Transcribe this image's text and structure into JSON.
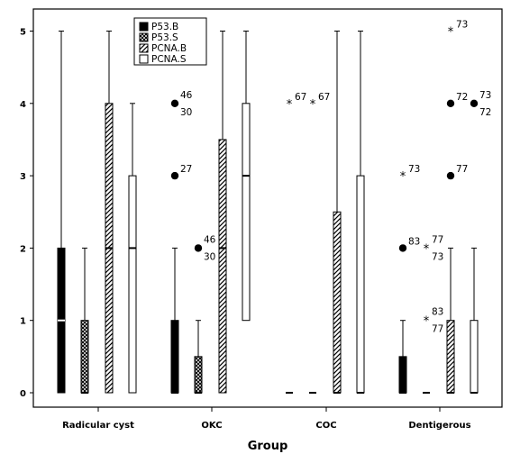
{
  "chart_data": {
    "type": "boxplot",
    "title": "",
    "xlabel": "Group",
    "ylabel": "",
    "ylim": [
      0,
      5
    ],
    "yticks": [
      "0",
      "1",
      "2",
      "3",
      "4",
      "5"
    ],
    "categories": [
      "Radicular cyst",
      "OKC",
      "COC",
      "Dentigerous"
    ],
    "grid": false,
    "legend_position": "top-left",
    "series": [
      {
        "name": "P53.B",
        "pattern": "solid-black",
        "fill": "#000000"
      },
      {
        "name": "P53.S",
        "pattern": "crosshatch",
        "fill": "#000000"
      },
      {
        "name": "PCNA.B",
        "pattern": "diagonal-hatch",
        "fill": "#000000"
      },
      {
        "name": "PCNA.S",
        "pattern": "empty",
        "fill": "#ffffff"
      }
    ],
    "boxes": [
      {
        "category": "Radicular cyst",
        "series": "P53.B",
        "min": 0,
        "q1": 0,
        "median": 1,
        "q3": 2,
        "max": 5
      },
      {
        "category": "Radicular cyst",
        "series": "P53.S",
        "min": 0,
        "q1": 0,
        "median": 0,
        "q3": 1,
        "max": 2
      },
      {
        "category": "Radicular cyst",
        "series": "PCNA.B",
        "min": 0,
        "q1": 0,
        "median": 2,
        "q3": 4,
        "max": 5
      },
      {
        "category": "Radicular cyst",
        "series": "PCNA.S",
        "min": 0,
        "q1": 0,
        "median": 2,
        "q3": 3,
        "max": 4
      },
      {
        "category": "OKC",
        "series": "P53.B",
        "min": 0,
        "q1": 0,
        "median": 0,
        "q3": 1,
        "max": 2
      },
      {
        "category": "OKC",
        "series": "P53.S",
        "min": 0,
        "q1": 0,
        "median": 0,
        "q3": 0.5,
        "max": 1
      },
      {
        "category": "OKC",
        "series": "PCNA.B",
        "min": 0,
        "q1": 0,
        "median": 2,
        "q3": 3.5,
        "max": 5
      },
      {
        "category": "OKC",
        "series": "PCNA.S",
        "min": 0,
        "q1": 1,
        "median": 3,
        "q3": 4,
        "max": 5
      },
      {
        "category": "COC",
        "series": "P53.B",
        "min": 0,
        "q1": 0,
        "median": 0,
        "q3": 0,
        "max": 0
      },
      {
        "category": "COC",
        "series": "P53.S",
        "min": 0,
        "q1": 0,
        "median": 0,
        "q3": 0,
        "max": 0
      },
      {
        "category": "COC",
        "series": "PCNA.B",
        "min": 0,
        "q1": 0,
        "median": 0,
        "q3": 2.5,
        "max": 5
      },
      {
        "category": "COC",
        "series": "PCNA.S",
        "min": 0,
        "q1": 0,
        "median": 0,
        "q3": 3,
        "max": 5
      },
      {
        "category": "Dentigerous",
        "series": "P53.B",
        "min": 0,
        "q1": 0,
        "median": 0,
        "q3": 0.5,
        "max": 1
      },
      {
        "category": "Dentigerous",
        "series": "P53.S",
        "min": 0,
        "q1": 0,
        "median": 0,
        "q3": 0,
        "max": 0
      },
      {
        "category": "Dentigerous",
        "series": "PCNA.B",
        "min": 0,
        "q1": 0,
        "median": 0,
        "q3": 1,
        "max": 2
      },
      {
        "category": "Dentigerous",
        "series": "PCNA.S",
        "min": 0,
        "q1": 0,
        "median": 0,
        "q3": 1,
        "max": 2
      }
    ],
    "outliers": [
      {
        "category": "OKC",
        "series": "P53.B",
        "value": 4,
        "marker": "circle",
        "labels": [
          "46",
          "30"
        ]
      },
      {
        "category": "OKC",
        "series": "P53.B",
        "value": 3,
        "marker": "circle",
        "labels": [
          "27"
        ]
      },
      {
        "category": "OKC",
        "series": "P53.S",
        "value": 2,
        "marker": "circle",
        "labels": [
          "46",
          "30"
        ]
      },
      {
        "category": "COC",
        "series": "P53.B",
        "value": 4,
        "marker": "star",
        "labels": [
          "67"
        ]
      },
      {
        "category": "COC",
        "series": "P53.S",
        "value": 4,
        "marker": "star",
        "labels": [
          "67"
        ]
      },
      {
        "category": "Dentigerous",
        "series": "P53.B",
        "value": 3,
        "marker": "star",
        "labels": [
          "73"
        ]
      },
      {
        "category": "Dentigerous",
        "series": "P53.B",
        "value": 2,
        "marker": "circle",
        "labels": [
          "83"
        ]
      },
      {
        "category": "Dentigerous",
        "series": "P53.S",
        "value": 2,
        "marker": "star",
        "labels": [
          "77",
          "73"
        ]
      },
      {
        "category": "Dentigerous",
        "series": "P53.S",
        "value": 1,
        "marker": "star",
        "labels": [
          "83",
          "77"
        ]
      },
      {
        "category": "Dentigerous",
        "series": "PCNA.B",
        "value": 5,
        "marker": "star",
        "labels": [
          "73"
        ]
      },
      {
        "category": "Dentigerous",
        "series": "PCNA.B",
        "value": 4,
        "marker": "circle",
        "labels": [
          "72"
        ]
      },
      {
        "category": "Dentigerous",
        "series": "PCNA.B",
        "value": 3,
        "marker": "circle",
        "labels": [
          "77"
        ]
      },
      {
        "category": "Dentigerous",
        "series": "PCNA.S",
        "value": 4,
        "marker": "circle",
        "labels": [
          "73",
          "72"
        ]
      }
    ]
  }
}
